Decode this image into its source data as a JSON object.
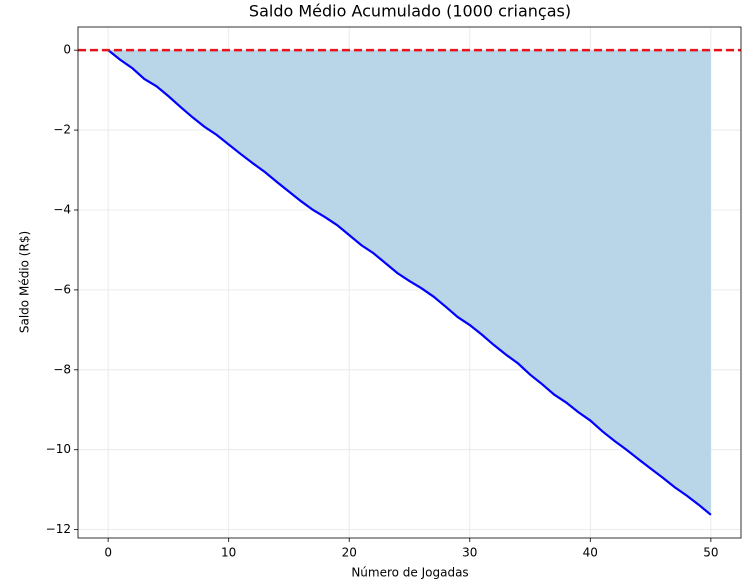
{
  "chart_data": {
    "type": "area-line",
    "title": "Saldo Médio Acumulado (1000 crianças)",
    "x_label": "Número de Jogadas",
    "y_label": "Saldo Médio (R$)",
    "x": [
      0,
      1,
      2,
      3,
      4,
      5,
      6,
      7,
      8,
      9,
      10,
      11,
      12,
      13,
      14,
      15,
      16,
      17,
      18,
      19,
      20,
      21,
      22,
      23,
      24,
      25,
      26,
      27,
      28,
      29,
      30,
      31,
      32,
      33,
      34,
      35,
      36,
      37,
      38,
      39,
      40,
      41,
      42,
      43,
      44,
      45,
      46,
      47,
      48,
      49,
      50
    ],
    "values": [
      0,
      -0.24,
      -0.45,
      -0.72,
      -0.9,
      -1.15,
      -1.42,
      -1.68,
      -1.92,
      -2.12,
      -2.36,
      -2.6,
      -2.83,
      -3.05,
      -3.3,
      -3.54,
      -3.78,
      -4.0,
      -4.18,
      -4.38,
      -4.63,
      -4.88,
      -5.08,
      -5.33,
      -5.58,
      -5.78,
      -5.96,
      -6.17,
      -6.42,
      -6.68,
      -6.88,
      -7.12,
      -7.38,
      -7.62,
      -7.84,
      -8.12,
      -8.36,
      -8.62,
      -8.82,
      -9.06,
      -9.27,
      -9.54,
      -9.78,
      -10.0,
      -10.24,
      -10.47,
      -10.7,
      -10.94,
      -11.15,
      -11.38,
      -11.63
    ],
    "color": "#0000ff",
    "fill_color": "#b9d5e8",
    "hline": 0,
    "hline_color": "#e8141c",
    "xlim": [
      -2.5,
      52.5
    ],
    "ylim": [
      -12.21,
      0.58
    ],
    "xticks": [
      0,
      10,
      20,
      30,
      40,
      50
    ],
    "yticks": [
      {
        "value": -12,
        "label": "−12"
      },
      {
        "value": -10,
        "label": "−10"
      },
      {
        "value": -8,
        "label": "−8"
      },
      {
        "value": -6,
        "label": "−6"
      },
      {
        "value": -4,
        "label": "−4"
      },
      {
        "value": -2,
        "label": "−2"
      },
      0
    ],
    "grid": true
  }
}
